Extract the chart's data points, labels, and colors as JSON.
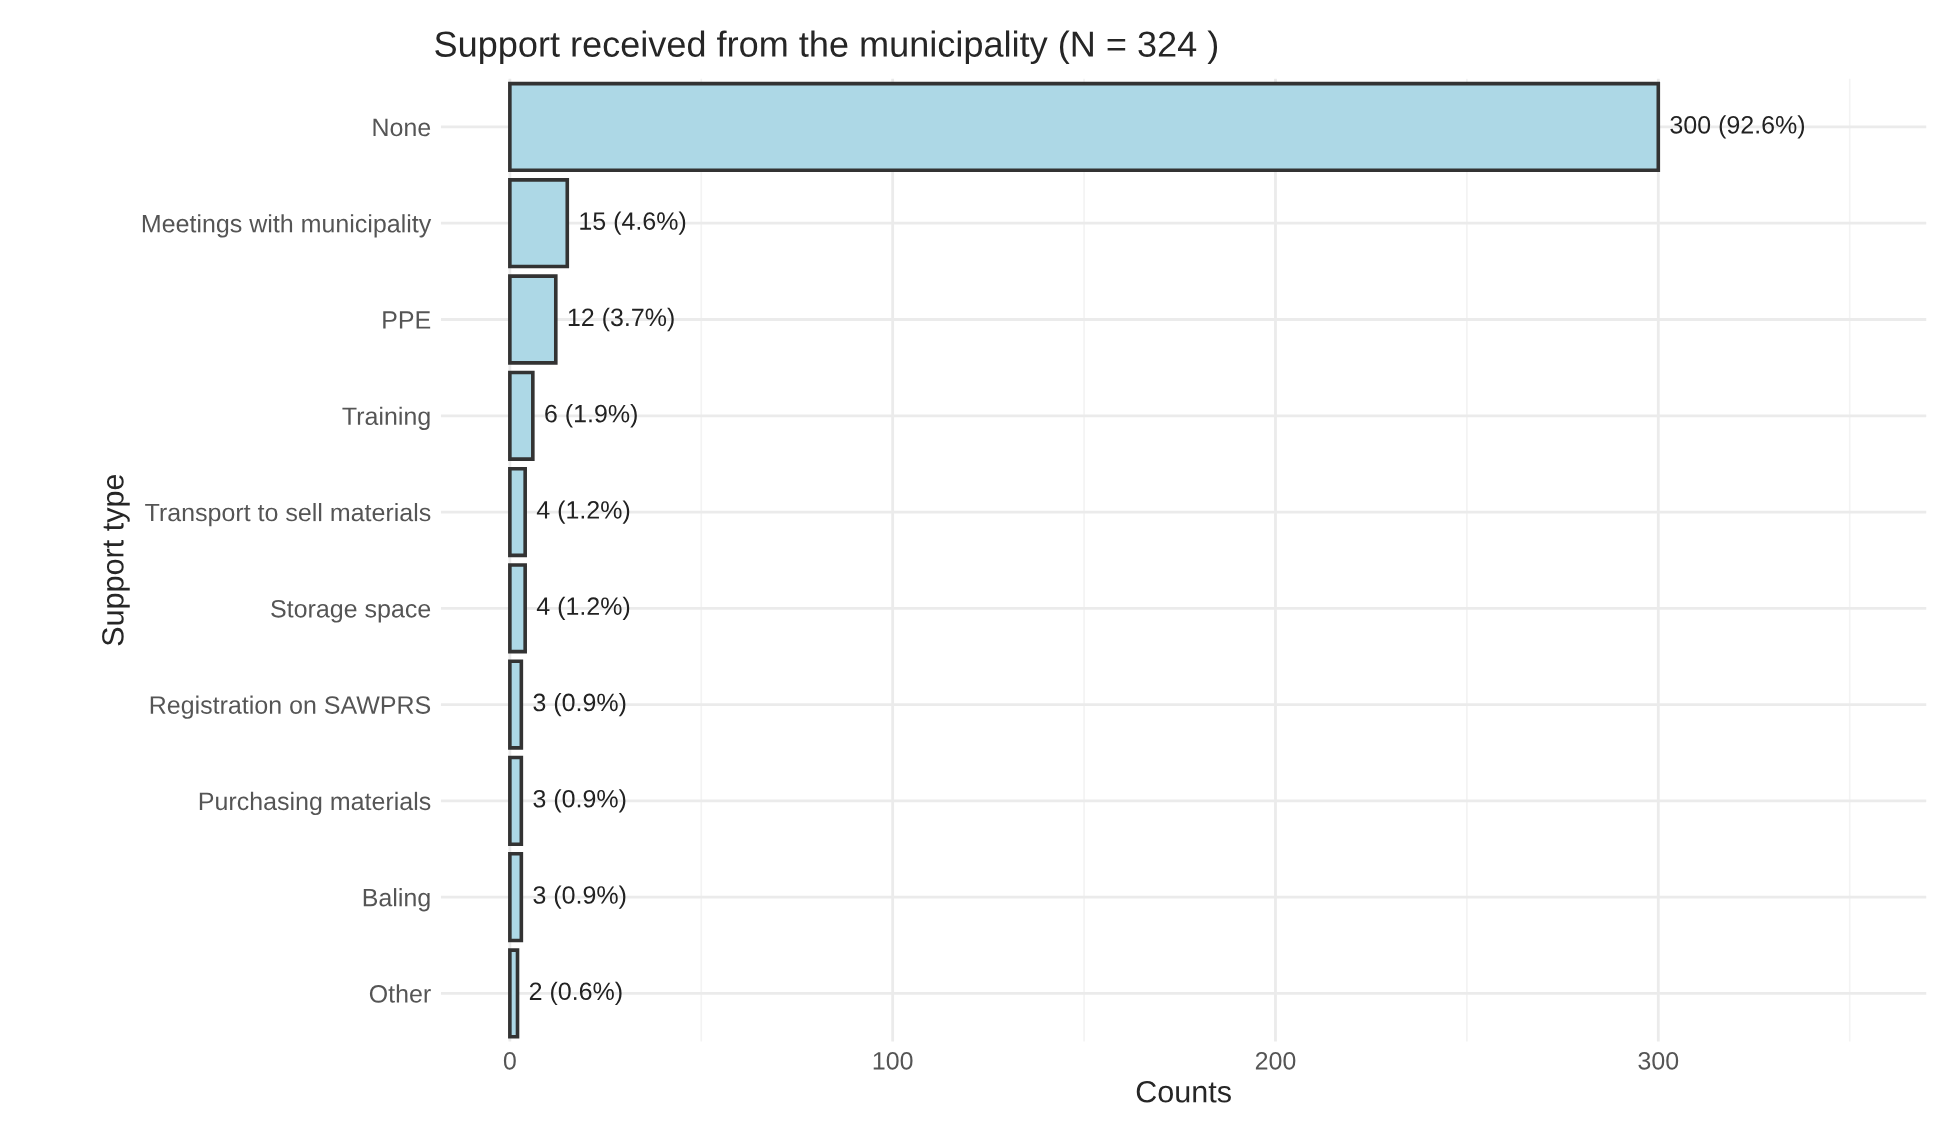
{
  "chart_data": {
    "type": "bar",
    "orientation": "horizontal",
    "title": "Support received from the municipality (N = 324 )",
    "xlabel": "Counts",
    "ylabel": "Support type",
    "categories": [
      "None",
      "Meetings with municipality",
      "PPE",
      "Training",
      "Transport to sell materials",
      "Storage space",
      "Registration on SAWPRS",
      "Purchasing materials",
      "Baling",
      "Other"
    ],
    "values": [
      300,
      15,
      12,
      6,
      4,
      4,
      3,
      3,
      3,
      2
    ],
    "value_labels": [
      "300 (92.6%)",
      "15 (4.6%)",
      "12 (3.7%)",
      "6 (1.9%)",
      "4 (1.2%)",
      "4 (1.2%)",
      "3 (0.9%)",
      "3 (0.9%)",
      "3 (0.9%)",
      "2 (0.6%)"
    ],
    "color": "#add8e6",
    "xlim": [
      -18,
      370
    ],
    "xticks": [
      0,
      100,
      200,
      300
    ],
    "grid": true,
    "legend": false
  }
}
